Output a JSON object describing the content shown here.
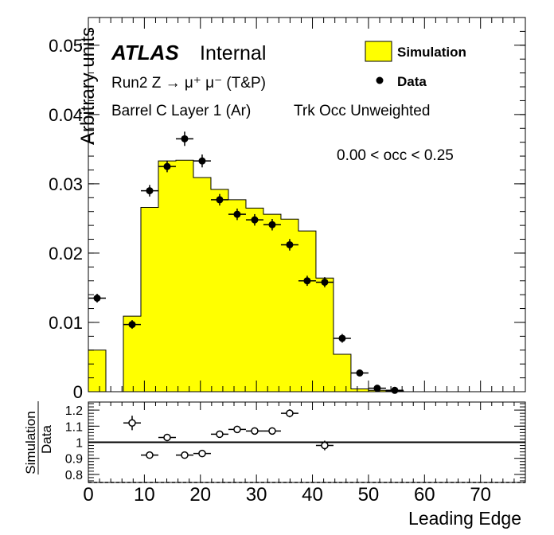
{
  "chart_data": [
    {
      "type": "histogram",
      "panel": "main",
      "ylabel": "Arbitrary units",
      "xlim": [
        0,
        78
      ],
      "ylim": [
        0,
        0.054
      ],
      "yticks": [
        0,
        0.01,
        0.02,
        0.03,
        0.04,
        0.05
      ],
      "ytick_labels": [
        "0",
        "0.01",
        "0.02",
        "0.03",
        "0.04",
        "0.05"
      ],
      "bin_width": 3.125,
      "series": [
        {
          "name": "Simulation",
          "color": "#ffff00",
          "style": "filled-histogram",
          "bins": [
            [
              0,
              0.006
            ],
            [
              3.125,
              0
            ],
            [
              6.25,
              0.0109
            ],
            [
              9.375,
              0.0266
            ],
            [
              12.5,
              0.0333
            ],
            [
              15.625,
              0.0334
            ],
            [
              18.75,
              0.0309
            ],
            [
              21.875,
              0.0292
            ],
            [
              25.0,
              0.0277
            ],
            [
              28.125,
              0.0265
            ],
            [
              31.25,
              0.0256
            ],
            [
              34.375,
              0.0249
            ],
            [
              37.5,
              0.0232
            ],
            [
              40.625,
              0.0164
            ],
            [
              43.75,
              0.0054
            ],
            [
              46.875,
              0.0004
            ],
            [
              50.0,
              0.0002
            ],
            [
              53.125,
              0.0001
            ]
          ]
        },
        {
          "name": "Data",
          "color": "#000000",
          "style": "markers",
          "points": [
            [
              1.5625,
              0.0135,
              0.0004
            ],
            [
              7.8125,
              0.0097,
              0.0004
            ],
            [
              10.9375,
              0.029,
              0.0006
            ],
            [
              14.0625,
              0.0325,
              0.0006
            ],
            [
              17.1875,
              0.0365,
              0.0008
            ],
            [
              20.3125,
              0.0333,
              0.0007
            ],
            [
              23.4375,
              0.0277,
              0.0006
            ],
            [
              26.5625,
              0.0256,
              0.0006
            ],
            [
              29.6875,
              0.0248,
              0.0006
            ],
            [
              32.8125,
              0.0241,
              0.0006
            ],
            [
              35.9375,
              0.0212,
              0.0006
            ],
            [
              39.0625,
              0.016,
              0.0005
            ],
            [
              42.1875,
              0.0158,
              0.0005
            ],
            [
              45.3125,
              0.0077,
              0.0004
            ],
            [
              48.4375,
              0.0027,
              0.0002
            ],
            [
              51.5625,
              0.0005,
              0.0001
            ],
            [
              54.6875,
              0.0002,
              0.0001
            ]
          ]
        }
      ],
      "legend": {
        "placement": "top-right",
        "entries": [
          {
            "label": "Simulation",
            "marker": "filled-box",
            "color": "#ffff00"
          },
          {
            "label": "Data",
            "marker": "dot",
            "color": "#000000"
          }
        ]
      },
      "annotations": {
        "experiment": "ATLAS",
        "status": "Internal",
        "line1": "Run2 Z → μ⁺ μ⁻ (T&P)",
        "line2": "Barrel C Layer 1 (Ar)",
        "line2b": "Trk Occ Unweighted",
        "range": "0.00 < occ < 0.25"
      }
    },
    {
      "type": "ratio",
      "panel": "ratio",
      "ylabel_numerator": "Simulation",
      "ylabel_denominator": "Data",
      "xlabel": "Leading Edge",
      "xlim": [
        0,
        78
      ],
      "ylim": [
        0.75,
        1.25
      ],
      "yticks": [
        0.8,
        0.9,
        1.0,
        1.1,
        1.2
      ],
      "ytick_labels": [
        "0.8",
        "0.9",
        "1",
        "1.1",
        "1.2"
      ],
      "xticks": [
        0,
        10,
        20,
        30,
        40,
        50,
        60,
        70
      ],
      "xtick_labels": [
        "0",
        "10",
        "20",
        "30",
        "40",
        "50",
        "60",
        "70"
      ],
      "reference_line": 1.0,
      "points": [
        [
          7.8125,
          1.12,
          0.04
        ],
        [
          10.9375,
          0.92,
          0.01
        ],
        [
          14.0625,
          1.03,
          0.01
        ],
        [
          17.1875,
          0.92,
          0.01
        ],
        [
          20.3125,
          0.93,
          0.01
        ],
        [
          23.4375,
          1.05,
          0.015
        ],
        [
          26.5625,
          1.08,
          0.015
        ],
        [
          29.6875,
          1.07,
          0.015
        ],
        [
          32.8125,
          1.07,
          0.015
        ],
        [
          35.9375,
          1.18,
          0.02
        ],
        [
          42.1875,
          0.98,
          0.025
        ]
      ]
    }
  ]
}
